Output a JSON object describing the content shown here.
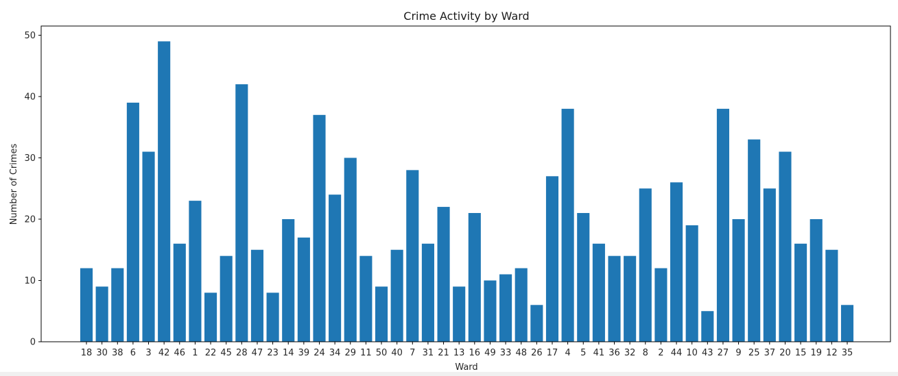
{
  "chart_data": {
    "type": "bar",
    "title": "Crime Activity by Ward",
    "xlabel": "Ward",
    "ylabel": "Number of Crimes",
    "categories": [
      "18",
      "30",
      "38",
      "6",
      "3",
      "42",
      "46",
      "1",
      "22",
      "45",
      "28",
      "47",
      "23",
      "14",
      "39",
      "24",
      "34",
      "29",
      "11",
      "50",
      "40",
      "7",
      "31",
      "21",
      "13",
      "16",
      "49",
      "33",
      "48",
      "26",
      "17",
      "4",
      "5",
      "41",
      "36",
      "32",
      "8",
      "2",
      "44",
      "10",
      "43",
      "27",
      "9",
      "25",
      "37",
      "20",
      "15",
      "19",
      "12",
      "35"
    ],
    "values": [
      12,
      9,
      12,
      39,
      31,
      49,
      16,
      23,
      8,
      14,
      42,
      15,
      8,
      20,
      17,
      37,
      24,
      30,
      14,
      9,
      15,
      28,
      16,
      22,
      9,
      21,
      10,
      11,
      12,
      6,
      27,
      38,
      21,
      16,
      14,
      14,
      25,
      12,
      26,
      19,
      5,
      38,
      20,
      33,
      25,
      31,
      16,
      20,
      15,
      6
    ],
    "yticks": [
      0,
      10,
      20,
      30,
      40,
      50
    ],
    "ylim": [
      0,
      51.5
    ],
    "grid": false,
    "bar_color": "#1f77b4"
  }
}
